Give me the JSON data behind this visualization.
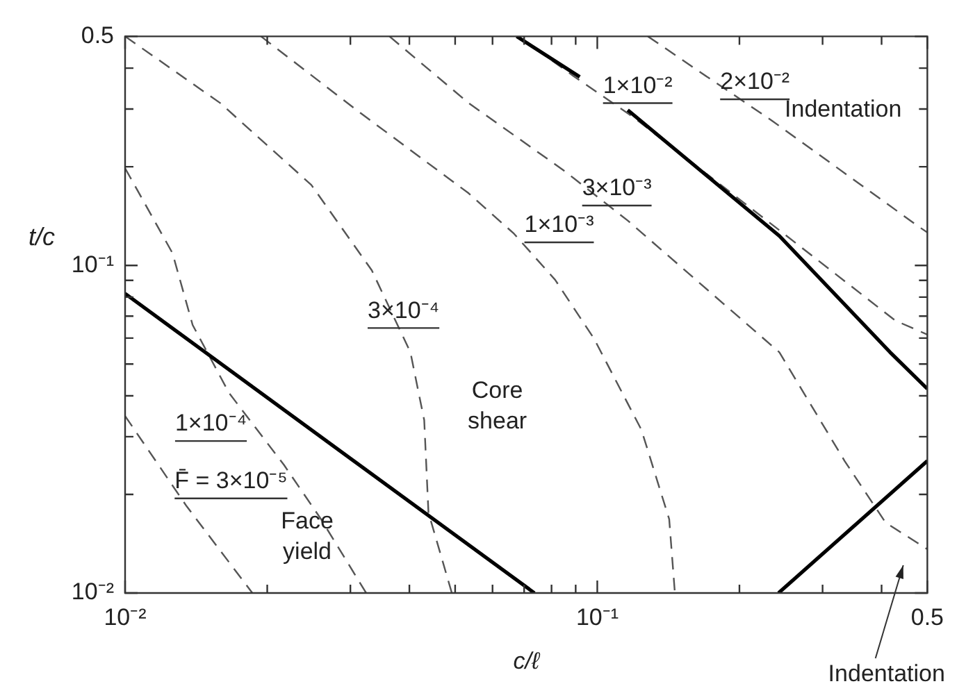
{
  "chart_data": {
    "type": "line",
    "xlabel": "c/ℓ",
    "ylabel": "t/c",
    "log": "xy",
    "marker": "none",
    "xlim": [
      0.01,
      0.5
    ],
    "ylim": [
      0.01,
      0.5
    ],
    "xticks": [
      {
        "value": 0.01,
        "label": "10⁻²"
      },
      {
        "value": 0.02,
        "label": null
      },
      {
        "value": 0.03,
        "label": null
      },
      {
        "value": 0.04,
        "label": null
      },
      {
        "value": 0.05,
        "label": null
      },
      {
        "value": 0.06,
        "label": null
      },
      {
        "value": 0.07,
        "label": null
      },
      {
        "value": 0.08,
        "label": null
      },
      {
        "value": 0.09,
        "label": null
      },
      {
        "value": 0.1,
        "label": "10⁻¹"
      },
      {
        "value": 0.2,
        "label": null
      },
      {
        "value": 0.3,
        "label": null
      },
      {
        "value": 0.4,
        "label": null
      },
      0.5
    ],
    "yticks": [
      {
        "value": 0.01,
        "label": "10⁻²"
      },
      {
        "value": 0.02,
        "label": null
      },
      {
        "value": 0.03,
        "label": null
      },
      {
        "value": 0.04,
        "label": null
      },
      {
        "value": 0.05,
        "label": null
      },
      {
        "value": 0.06,
        "label": null
      },
      {
        "value": 0.07,
        "label": null
      },
      {
        "value": 0.08,
        "label": null
      },
      {
        "value": 0.09,
        "label": null
      },
      {
        "value": 0.1,
        "label": "10⁻¹"
      },
      {
        "value": 0.2,
        "label": null
      },
      {
        "value": 0.3,
        "label": null
      },
      {
        "value": 0.4,
        "label": null
      },
      0.5
    ],
    "series": [
      {
        "color": "#000000",
        "line_style": "solid",
        "x": [
          0.01,
          0.0736
        ],
        "values": [
          0.082,
          0.01
        ]
      },
      {
        "color": "#000000",
        "line_style": "solid",
        "x": [
          0.0675,
          0.0918,
          0.1,
          0.116,
          0.243,
          0.417,
          0.5
        ],
        "values": [
          0.5,
          0.376,
          null,
          0.298,
          0.123,
          0.0543,
          0.042
        ]
      },
      {
        "color": "#000000",
        "line_style": "solid",
        "x": [
          0.242,
          0.5
        ],
        "values": [
          0.01,
          0.0253
        ]
      },
      {
        "color": "#555555",
        "line_style": "dashed",
        "x": [
          0.01,
          0.0135,
          0.0186
        ],
        "values": [
          0.0347,
          0.0184,
          0.01
        ]
      },
      {
        "color": "#555555",
        "line_style": "dashed",
        "x": [
          0.01,
          0.0126,
          0.0139,
          0.0166,
          0.0217,
          0.026,
          0.0324
        ],
        "values": [
          0.198,
          0.109,
          0.0658,
          0.0408,
          0.0246,
          0.0168,
          0.01
        ]
      },
      {
        "color": "#555555",
        "line_style": "dashed",
        "x": [
          0.01,
          0.0159,
          0.0248,
          0.0333,
          0.0402,
          0.043,
          0.0439,
          0.0492
        ],
        "values": [
          0.5,
          0.313,
          0.176,
          0.0966,
          0.0543,
          0.0337,
          0.0176,
          0.01
        ]
      },
      {
        "color": "#555555",
        "line_style": "dashed",
        "x": [
          0.0194,
          0.0311,
          0.0534,
          0.0666,
          0.0814,
          0.0984,
          0.124,
          0.142,
          0.146
        ],
        "values": [
          0.5,
          0.296,
          0.166,
          0.125,
          0.0904,
          0.0598,
          0.0315,
          0.0168,
          0.01
        ]
      },
      {
        "color": "#555555",
        "line_style": "dashed",
        "x": [
          0.0363,
          0.0534,
          0.0853,
          0.116,
          0.243,
          0.334,
          0.408,
          0.5
        ],
        "values": [
          0.5,
          0.313,
          0.194,
          0.137,
          0.0543,
          0.0253,
          0.0164,
          0.0136
        ]
      },
      {
        "color": "#555555",
        "line_style": "dashed",
        "x": [
          0.068,
          0.0889,
          0.119,
          0.243,
          0.428,
          0.5
        ],
        "values": [
          0.5,
          0.379,
          0.284,
          0.128,
          0.0678,
          0.0615
        ]
      },
      {
        "color": "#555555",
        "line_style": "dashed",
        "x": [
          0.128,
          0.163,
          0.234,
          0.477,
          0.5
        ],
        "values": [
          0.5,
          0.394,
          0.277,
          0.132,
          0.126
        ]
      }
    ],
    "annotations": [
      "F̄ = 3×10⁻⁵",
      "1×10⁻⁴",
      "3×10⁻⁴",
      "1×10⁻³",
      "3×10⁻³",
      "1×10⁻²",
      "2×10⁻²",
      "Core shear",
      "Face yield",
      "Indentation",
      "Indentation"
    ]
  }
}
